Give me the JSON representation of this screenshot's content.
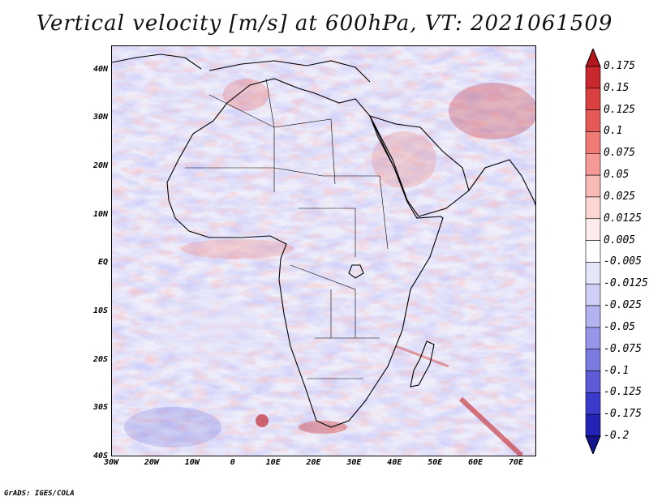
{
  "title": "Vertical velocity [m/s] at 600hPa, VT: 2021061509",
  "credit": "GrADS: IGES/COLA",
  "map": {
    "lon_range": [
      -30,
      75
    ],
    "lat_range": [
      -40,
      45
    ],
    "lat_ticks": [
      {
        "value": 40,
        "label": "40N"
      },
      {
        "value": 30,
        "label": "30N"
      },
      {
        "value": 20,
        "label": "20N"
      },
      {
        "value": 10,
        "label": "10N"
      },
      {
        "value": 0,
        "label": "EQ"
      },
      {
        "value": -10,
        "label": "10S"
      },
      {
        "value": -20,
        "label": "20S"
      },
      {
        "value": -30,
        "label": "30S"
      },
      {
        "value": -40,
        "label": "40S"
      }
    ],
    "lon_ticks": [
      {
        "value": -30,
        "label": "30W"
      },
      {
        "value": -20,
        "label": "20W"
      },
      {
        "value": -10,
        "label": "10W"
      },
      {
        "value": 0,
        "label": "0"
      },
      {
        "value": 10,
        "label": "10E"
      },
      {
        "value": 20,
        "label": "20E"
      },
      {
        "value": 30,
        "label": "30E"
      },
      {
        "value": 40,
        "label": "40E"
      },
      {
        "value": 50,
        "label": "50E"
      },
      {
        "value": 60,
        "label": "60E"
      },
      {
        "value": 70,
        "label": "70E"
      }
    ]
  },
  "colorbar": {
    "labels": [
      "0.175",
      "0.15",
      "0.125",
      "0.1",
      "0.075",
      "0.05",
      "0.025",
      "0.0125",
      "0.005",
      "-0.005",
      "-0.0125",
      "-0.025",
      "-0.05",
      "-0.075",
      "-0.1",
      "-0.125",
      "-0.175",
      "-0.2"
    ],
    "colors": [
      "#b4161c",
      "#c8282d",
      "#d9403f",
      "#e55a57",
      "#ef7a76",
      "#f59a96",
      "#f9bab6",
      "#fcd6d3",
      "#fdeceb",
      "#ffffff",
      "#e6e6fb",
      "#cfcff6",
      "#b3b3f0",
      "#9696e8",
      "#7a7ae0",
      "#5c5cd6",
      "#3a3acb",
      "#2222b4",
      "#14148f"
    ]
  }
}
